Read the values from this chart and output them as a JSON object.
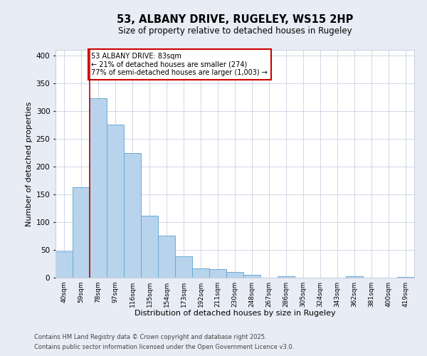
{
  "title": "53, ALBANY DRIVE, RUGELEY, WS15 2HP",
  "subtitle": "Size of property relative to detached houses in Rugeley",
  "xlabel": "Distribution of detached houses by size in Rugeley",
  "ylabel": "Number of detached properties",
  "bin_labels": [
    "40sqm",
    "59sqm",
    "78sqm",
    "97sqm",
    "116sqm",
    "135sqm",
    "154sqm",
    "173sqm",
    "192sqm",
    "211sqm",
    "230sqm",
    "248sqm",
    "267sqm",
    "286sqm",
    "305sqm",
    "324sqm",
    "343sqm",
    "362sqm",
    "381sqm",
    "400sqm",
    "419sqm"
  ],
  "bar_values": [
    48,
    163,
    323,
    275,
    224,
    112,
    75,
    38,
    17,
    16,
    10,
    5,
    0,
    2,
    0,
    0,
    0,
    3,
    0,
    0,
    1
  ],
  "bar_color": "#b8d4ec",
  "bar_edge_color": "#6aaad4",
  "vline_x": 2,
  "vline_color": "#cc0000",
  "annotation_title": "53 ALBANY DRIVE: 83sqm",
  "annotation_line2": "← 21% of detached houses are smaller (274)",
  "annotation_line3": "77% of semi-detached houses are larger (1,003) →",
  "annotation_box_color": "#cc0000",
  "ylim": [
    0,
    410
  ],
  "yticks": [
    0,
    50,
    100,
    150,
    200,
    250,
    300,
    350,
    400
  ],
  "footer1": "Contains HM Land Registry data © Crown copyright and database right 2025.",
  "footer2": "Contains public sector information licensed under the Open Government Licence v3.0.",
  "bg_color": "#e8ecf4",
  "plot_bg_color": "#ffffff",
  "grid_color": "#c8d0e0"
}
